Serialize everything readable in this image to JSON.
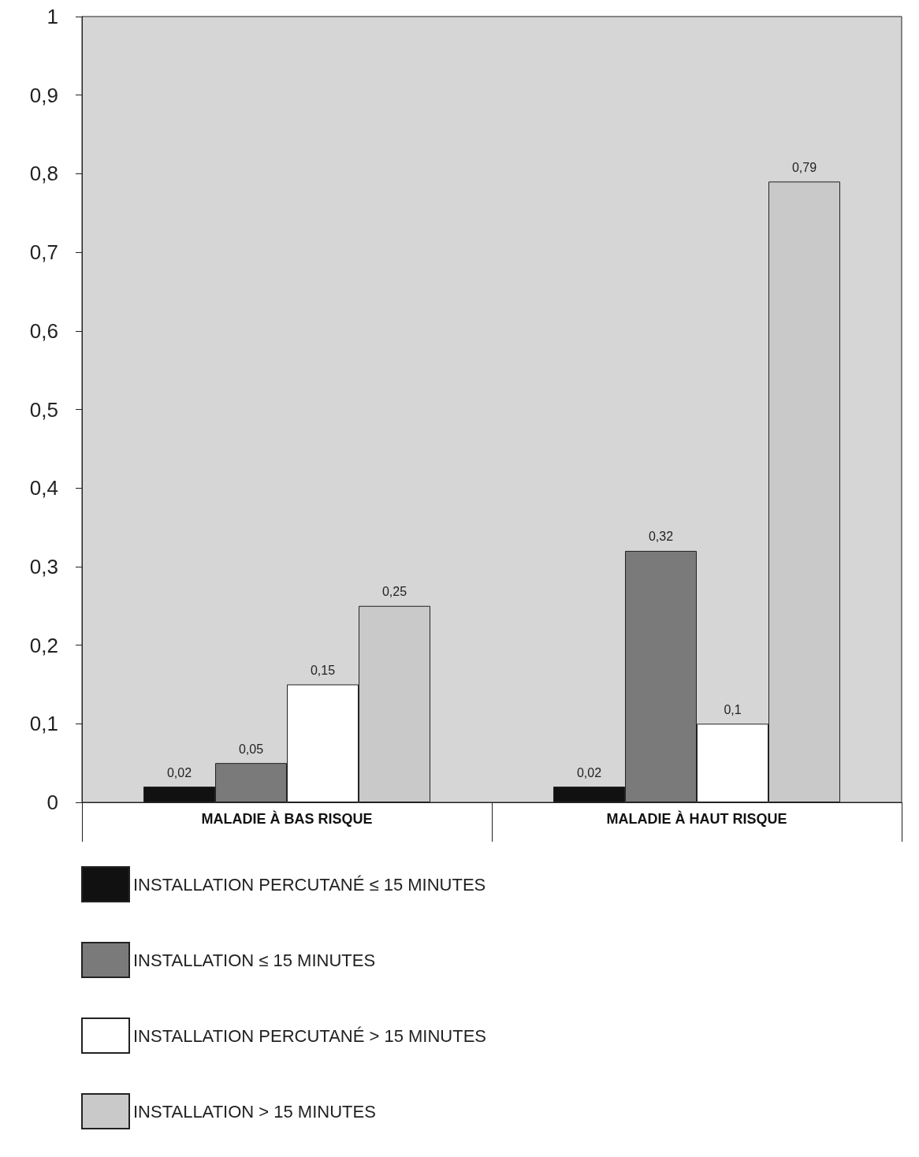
{
  "chart_data": {
    "type": "bar",
    "categories": [
      "MALADIE À BAS RISQUE",
      "MALADIE À HAUT RISQUE"
    ],
    "series": [
      {
        "name": "INSTALLATION PERCUTANÉ ≤ 15 MINUTES",
        "color": "#111111",
        "values": [
          0.02,
          0.02
        ],
        "value_labels": [
          "0,02",
          "0,02"
        ]
      },
      {
        "name": "INSTALLATION ≤ 15 MINUTES",
        "color": "#7a7a7a",
        "values": [
          0.05,
          0.32
        ],
        "value_labels": [
          "0,05",
          "0,32"
        ]
      },
      {
        "name": "INSTALLATION PERCUTANÉ > 15 MINUTES",
        "color": "#ffffff",
        "values": [
          0.15,
          0.1
        ],
        "value_labels": [
          "0,15",
          "0,1"
        ]
      },
      {
        "name": "INSTALLATION > 15 MINUTES",
        "color": "#c9c9c9",
        "values": [
          0.25,
          0.79
        ],
        "value_labels": [
          "0,25",
          "0,79"
        ]
      }
    ],
    "ylim": [
      0,
      1
    ],
    "yticks": [
      0,
      {
        "value": 0.1,
        "label": "0,1"
      },
      {
        "value": 0.2,
        "label": "0,2"
      },
      {
        "value": 0.3,
        "label": "0,3"
      },
      {
        "value": 0.4,
        "label": "0,4"
      },
      {
        "value": 0.5,
        "label": "0,5"
      },
      {
        "value": 0.6,
        "label": "0,6"
      },
      {
        "value": 0.7,
        "label": "0,7"
      },
      {
        "value": 0.8,
        "label": "0,8"
      },
      {
        "value": 0.9,
        "label": "0,9"
      },
      1
    ],
    "grid": false,
    "legend": "bottom"
  }
}
